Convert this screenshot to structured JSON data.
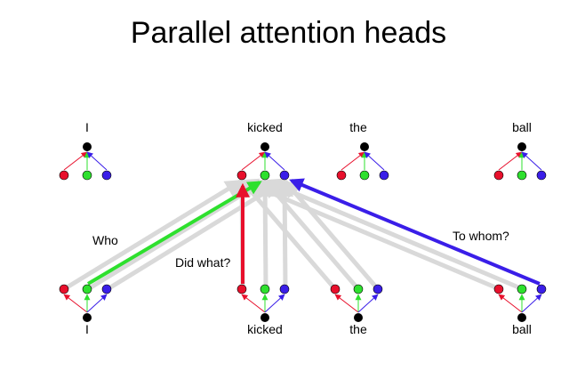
{
  "title": "Parallel attention heads",
  "colors": {
    "head_a": "#e8102c",
    "head_b": "#2ee02e",
    "head_c": "#3a1ee8",
    "word_node": "#000000",
    "faded": "#d9d9d9"
  },
  "top_words": [
    "I",
    "kicked",
    "the",
    "ball"
  ],
  "bottom_words": [
    "I",
    "kicked",
    "the",
    "ball"
  ],
  "edge_labels": {
    "who": "Who",
    "did_what": "Did what?",
    "to_whom": "To whom?"
  }
}
